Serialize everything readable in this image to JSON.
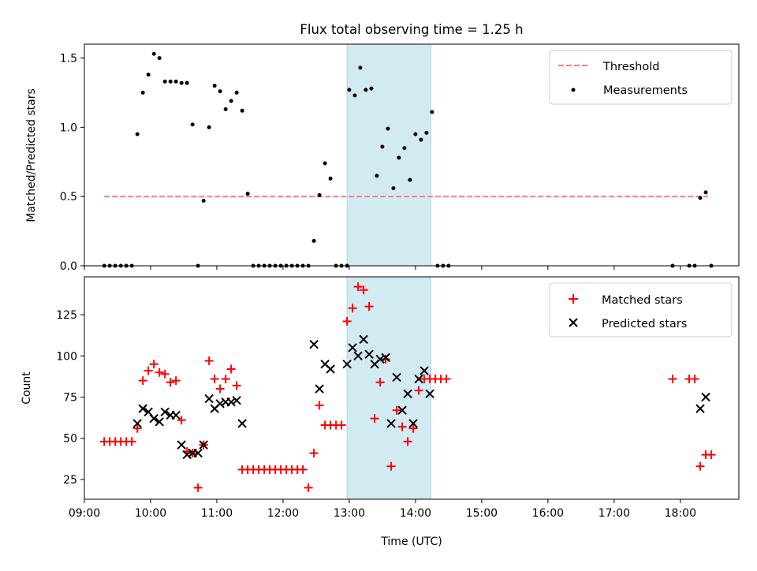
{
  "chart_data": [
    {
      "type": "scatter",
      "title": "Flux total observing time = 1.25 h",
      "xlabel": "",
      "ylabel": "Matched/Predicted stars",
      "xlim": [
        "09:00",
        "18:53"
      ],
      "ylim": [
        0,
        1.6
      ],
      "yticks": [
        0.0,
        0.5,
        1.0,
        1.5
      ],
      "ytick_labels": [
        "0.0",
        "0.5",
        "1.0",
        "1.5"
      ],
      "grid": false,
      "legend_position": "top-right",
      "highlight_span": {
        "start": "12:58",
        "end": "14:14",
        "color": "#add8e6"
      },
      "threshold": {
        "name": "Threshold",
        "value": 0.5,
        "x_start": "09:18",
        "x_end": "18:25",
        "color": "#f08080",
        "style": "dashed"
      },
      "series": [
        {
          "name": "Measurements",
          "color": "#000000",
          "marker": "dot",
          "points": [
            [
              "09:18",
              0
            ],
            [
              "09:23",
              0
            ],
            [
              "09:28",
              0
            ],
            [
              "09:33",
              0
            ],
            [
              "09:38",
              0
            ],
            [
              "09:43",
              0
            ],
            [
              "09:48",
              0.95
            ],
            [
              "09:53",
              1.25
            ],
            [
              "09:58",
              1.38
            ],
            [
              "10:03",
              1.53
            ],
            [
              "10:08",
              1.5
            ],
            [
              "10:13",
              1.33
            ],
            [
              "10:18",
              1.33
            ],
            [
              "10:23",
              1.33
            ],
            [
              "10:28",
              1.32
            ],
            [
              "10:33",
              1.32
            ],
            [
              "10:38",
              1.02
            ],
            [
              "10:43",
              0
            ],
            [
              "10:48",
              0.47
            ],
            [
              "10:53",
              1.0
            ],
            [
              "10:58",
              1.3
            ],
            [
              "11:03",
              1.26
            ],
            [
              "11:08",
              1.13
            ],
            [
              "11:13",
              1.19
            ],
            [
              "11:18",
              1.25
            ],
            [
              "11:23",
              1.12
            ],
            [
              "11:28",
              0.52
            ],
            [
              "11:33",
              0
            ],
            [
              "11:38",
              0
            ],
            [
              "11:43",
              0
            ],
            [
              "11:48",
              0
            ],
            [
              "11:53",
              0
            ],
            [
              "11:58",
              0
            ],
            [
              "12:03",
              0
            ],
            [
              "12:08",
              0
            ],
            [
              "12:13",
              0
            ],
            [
              "12:18",
              0
            ],
            [
              "12:23",
              0
            ],
            [
              "12:28",
              0.18
            ],
            [
              "12:33",
              0.51
            ],
            [
              "12:38",
              0.74
            ],
            [
              "12:43",
              0.63
            ],
            [
              "12:48",
              0
            ],
            [
              "12:53",
              0
            ],
            [
              "12:58",
              0
            ],
            [
              "13:00",
              1.27
            ],
            [
              "13:05",
              1.23
            ],
            [
              "13:10",
              1.43
            ],
            [
              "13:15",
              1.27
            ],
            [
              "13:20",
              1.28
            ],
            [
              "13:25",
              0.65
            ],
            [
              "13:30",
              0.86
            ],
            [
              "13:35",
              0.99
            ],
            [
              "13:40",
              0.56
            ],
            [
              "13:45",
              0.78
            ],
            [
              "13:50",
              0.85
            ],
            [
              "13:55",
              0.62
            ],
            [
              "14:00",
              0.95
            ],
            [
              "14:05",
              0.91
            ],
            [
              "14:10",
              0.96
            ],
            [
              "14:15",
              1.11
            ],
            [
              "14:20",
              0
            ],
            [
              "14:25",
              0
            ],
            [
              "14:30",
              0
            ],
            [
              "17:53",
              0
            ],
            [
              "18:08",
              0
            ],
            [
              "18:13",
              0
            ],
            [
              "18:18",
              0.49
            ],
            [
              "18:23",
              0.53
            ],
            [
              "18:28",
              0
            ]
          ]
        }
      ]
    },
    {
      "type": "scatter",
      "title": "",
      "xlabel": "Time (UTC)",
      "ylabel": "Count",
      "xlim": [
        "09:00",
        "18:53"
      ],
      "ylim": [
        13,
        148
      ],
      "xticks": [
        "09:00",
        "10:00",
        "11:00",
        "12:00",
        "13:00",
        "14:00",
        "15:00",
        "16:00",
        "17:00",
        "18:00"
      ],
      "yticks": [
        25,
        50,
        75,
        100,
        125
      ],
      "ytick_labels": [
        "25",
        "50",
        "75",
        "100",
        "125"
      ],
      "grid": false,
      "legend_position": "top-right",
      "highlight_span": {
        "start": "12:58",
        "end": "14:14",
        "color": "#add8e6"
      },
      "series": [
        {
          "name": "Matched stars",
          "color": "#ff0000",
          "marker": "plus",
          "points": [
            [
              "09:18",
              48
            ],
            [
              "09:23",
              48
            ],
            [
              "09:28",
              48
            ],
            [
              "09:33",
              48
            ],
            [
              "09:38",
              48
            ],
            [
              "09:43",
              48
            ],
            [
              "09:48",
              56
            ],
            [
              "09:53",
              85
            ],
            [
              "09:58",
              91
            ],
            [
              "10:03",
              95
            ],
            [
              "10:08",
              90
            ],
            [
              "10:13",
              89
            ],
            [
              "10:18",
              84
            ],
            [
              "10:23",
              85
            ],
            [
              "10:28",
              61
            ],
            [
              "10:33",
              42
            ],
            [
              "10:38",
              41
            ],
            [
              "10:43",
              20
            ],
            [
              "10:48",
              46
            ],
            [
              "10:53",
              97
            ],
            [
              "10:58",
              86
            ],
            [
              "11:03",
              80
            ],
            [
              "11:08",
              86
            ],
            [
              "11:13",
              92
            ],
            [
              "11:18",
              82
            ],
            [
              "11:23",
              31
            ],
            [
              "11:28",
              31
            ],
            [
              "11:33",
              31
            ],
            [
              "11:38",
              31
            ],
            [
              "11:43",
              31
            ],
            [
              "11:48",
              31
            ],
            [
              "11:53",
              31
            ],
            [
              "11:58",
              31
            ],
            [
              "12:03",
              31
            ],
            [
              "12:08",
              31
            ],
            [
              "12:13",
              31
            ],
            [
              "12:18",
              31
            ],
            [
              "12:23",
              20
            ],
            [
              "12:28",
              41
            ],
            [
              "12:33",
              70
            ],
            [
              "12:38",
              58
            ],
            [
              "12:43",
              58
            ],
            [
              "12:48",
              58
            ],
            [
              "12:53",
              58
            ],
            [
              "12:58",
              121
            ],
            [
              "13:03",
              129
            ],
            [
              "13:08",
              142
            ],
            [
              "13:13",
              140
            ],
            [
              "13:18",
              130
            ],
            [
              "13:23",
              62
            ],
            [
              "13:28",
              84
            ],
            [
              "13:33",
              98
            ],
            [
              "13:38",
              33
            ],
            [
              "13:43",
              67
            ],
            [
              "13:48",
              57
            ],
            [
              "13:53",
              48
            ],
            [
              "13:58",
              56
            ],
            [
              "14:03",
              79
            ],
            [
              "14:08",
              86
            ],
            [
              "14:13",
              86
            ],
            [
              "14:18",
              86
            ],
            [
              "14:23",
              86
            ],
            [
              "14:28",
              86
            ],
            [
              "17:53",
              86
            ],
            [
              "18:08",
              86
            ],
            [
              "18:13",
              86
            ],
            [
              "18:18",
              33
            ],
            [
              "18:23",
              40
            ],
            [
              "18:28",
              40
            ]
          ]
        },
        {
          "name": "Predicted stars",
          "color": "#000000",
          "marker": "x",
          "points": [
            [
              "09:48",
              59
            ],
            [
              "09:53",
              68
            ],
            [
              "09:58",
              66
            ],
            [
              "10:03",
              62
            ],
            [
              "10:08",
              60
            ],
            [
              "10:13",
              66
            ],
            [
              "10:18",
              64
            ],
            [
              "10:23",
              64
            ],
            [
              "10:28",
              46
            ],
            [
              "10:33",
              40
            ],
            [
              "10:38",
              41
            ],
            [
              "10:43",
              41
            ],
            [
              "10:48",
              46
            ],
            [
              "10:53",
              74
            ],
            [
              "10:58",
              68
            ],
            [
              "11:03",
              71
            ],
            [
              "11:08",
              72
            ],
            [
              "11:13",
              72
            ],
            [
              "11:18",
              73
            ],
            [
              "11:23",
              59
            ],
            [
              "12:28",
              107
            ],
            [
              "12:33",
              80
            ],
            [
              "12:38",
              95
            ],
            [
              "12:43",
              92
            ],
            [
              "12:58",
              95
            ],
            [
              "13:03",
              105
            ],
            [
              "13:08",
              100
            ],
            [
              "13:13",
              110
            ],
            [
              "13:18",
              101
            ],
            [
              "13:23",
              95
            ],
            [
              "13:28",
              98
            ],
            [
              "13:33",
              99
            ],
            [
              "13:38",
              59
            ],
            [
              "13:43",
              87
            ],
            [
              "13:48",
              67
            ],
            [
              "13:53",
              77
            ],
            [
              "13:58",
              59
            ],
            [
              "14:03",
              86
            ],
            [
              "14:08",
              91
            ],
            [
              "14:13",
              77
            ],
            [
              "18:18",
              68
            ],
            [
              "18:23",
              75
            ]
          ]
        }
      ]
    }
  ]
}
